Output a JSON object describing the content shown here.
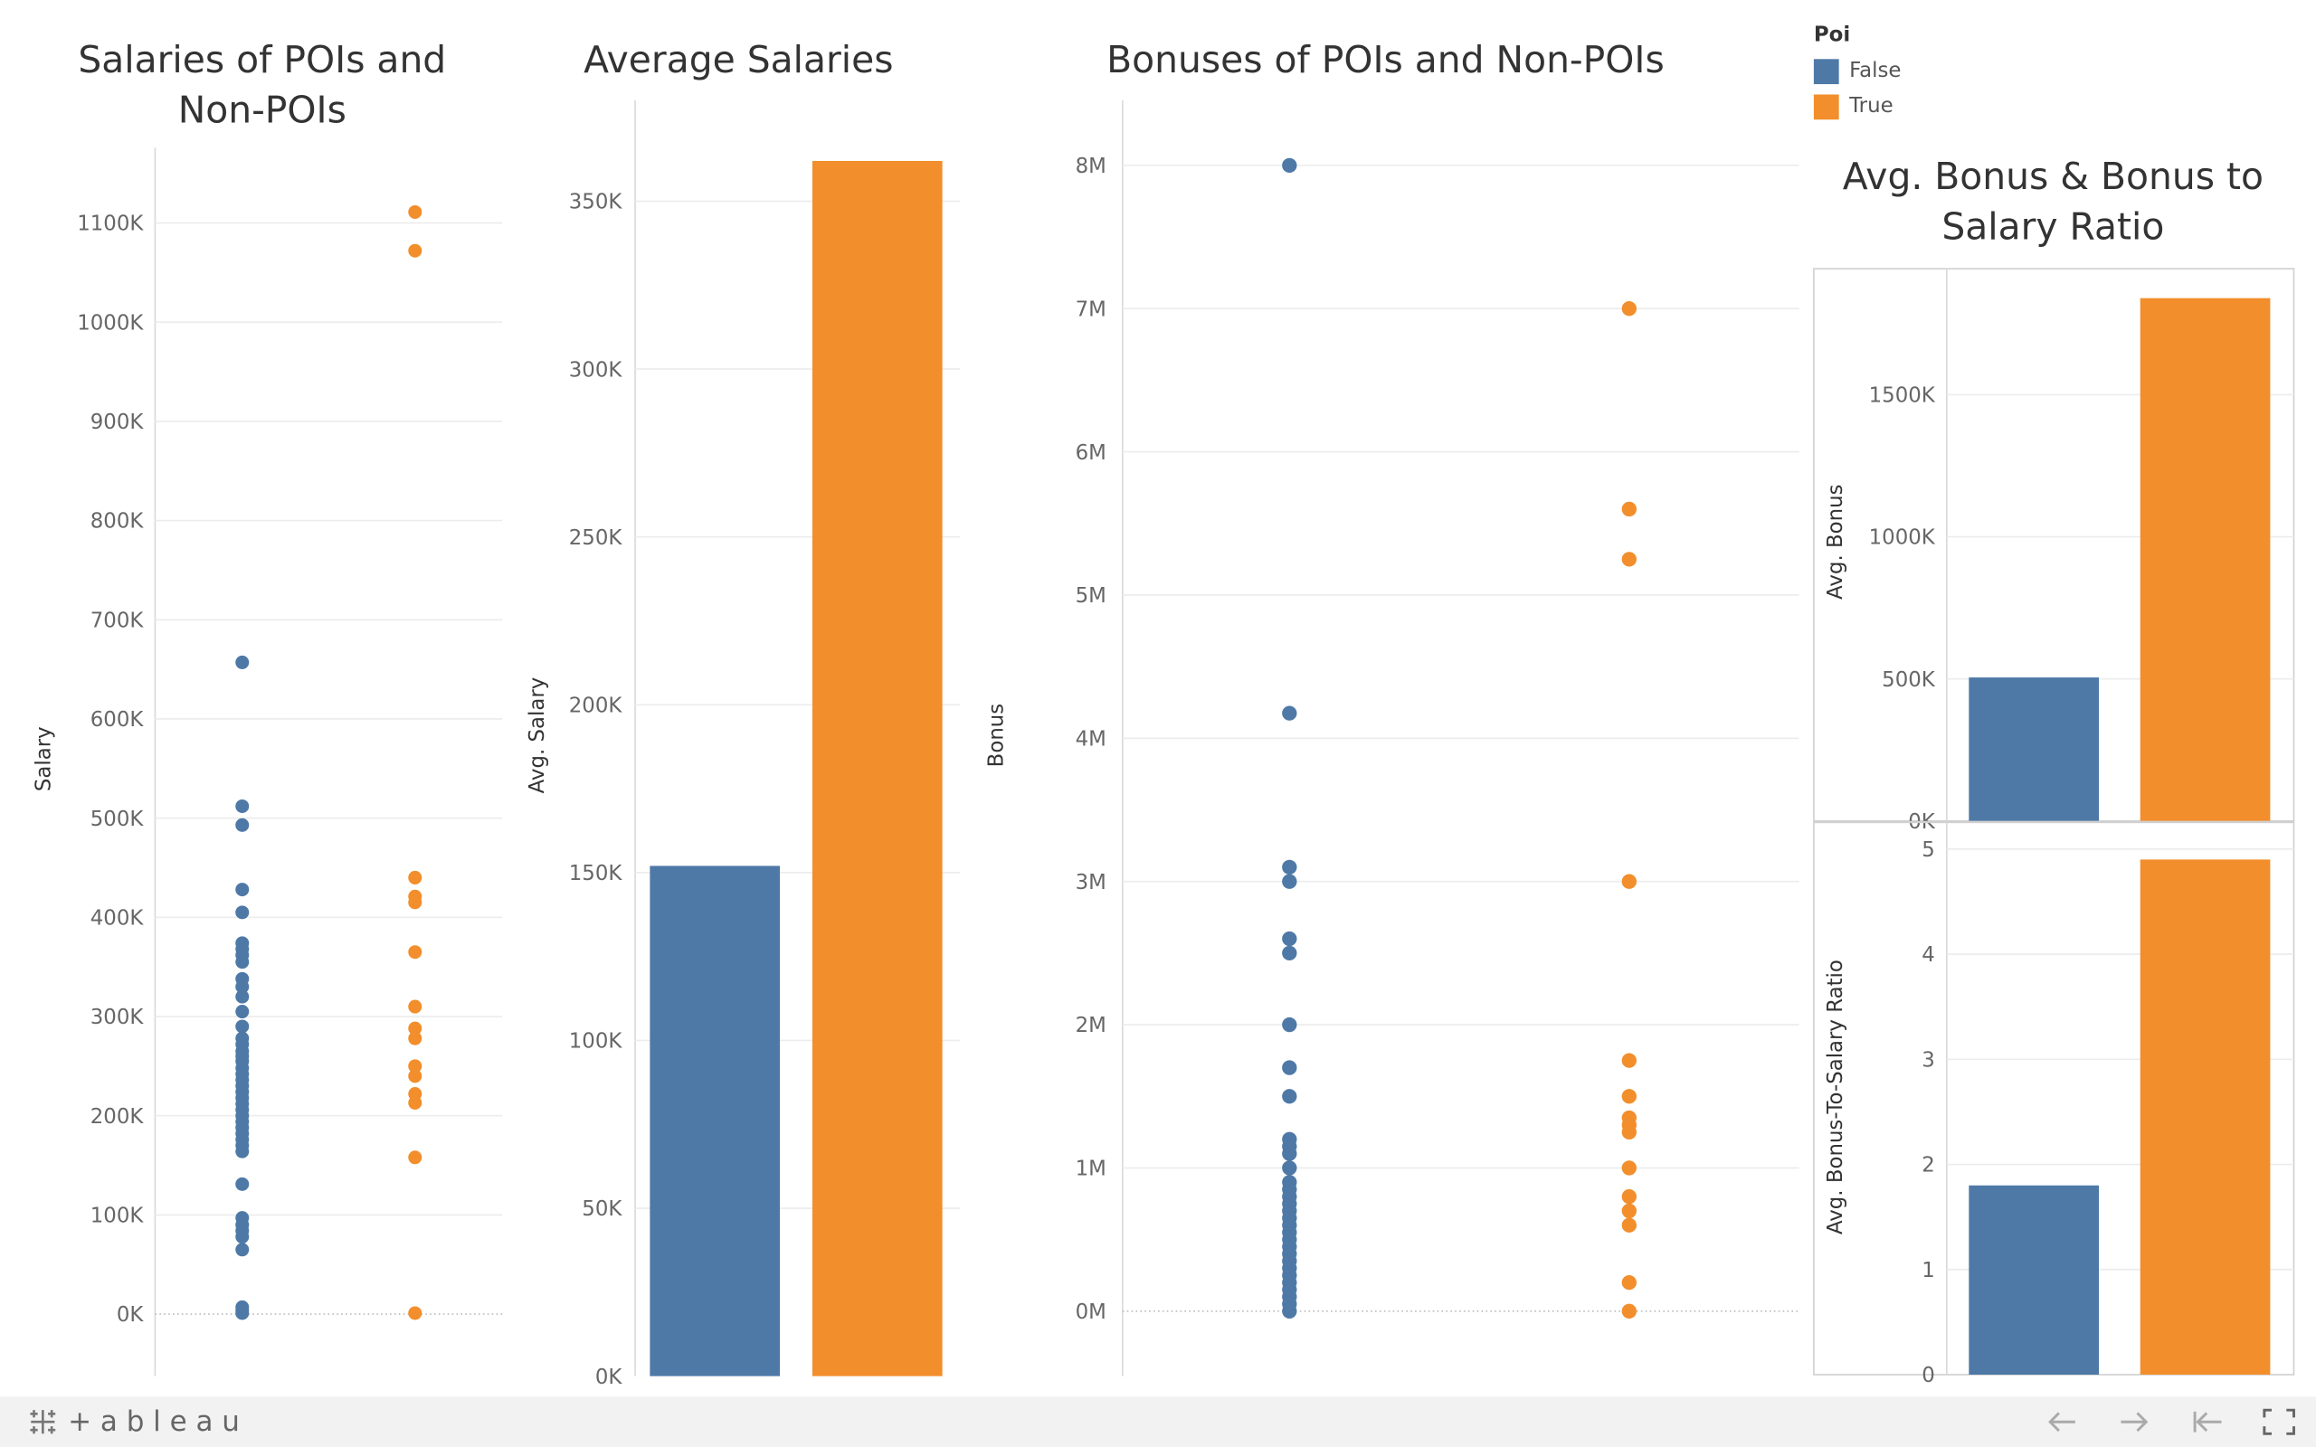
{
  "legend": {
    "title": "Poi",
    "items": [
      {
        "label": "False",
        "color": "#4e79a7"
      },
      {
        "label": "True",
        "color": "#f28e2b"
      }
    ]
  },
  "chart_data": [
    {
      "id": "salaries",
      "type": "scatter",
      "title": "Salaries of POIs and Non-POIs",
      "ylabel": "Salary",
      "ylim": [
        0,
        1100000
      ],
      "ytick_labels": [
        "0K",
        "100K",
        "200K",
        "300K",
        "400K",
        "500K",
        "600K",
        "700K",
        "800K",
        "900K",
        "1000K",
        "1100K"
      ],
      "series": [
        {
          "name": "False",
          "color": "#4e79a7",
          "values": [
            657000,
            512000,
            493000,
            428000,
            405000,
            374000,
            368000,
            362000,
            355000,
            338000,
            330000,
            320000,
            305000,
            290000,
            278000,
            272000,
            265000,
            260000,
            255000,
            248000,
            242000,
            236000,
            230000,
            224000,
            218000,
            212000,
            206000,
            200000,
            194000,
            188000,
            182000,
            176000,
            170000,
            164000,
            131000,
            97000,
            90000,
            84000,
            78000,
            65000,
            7000,
            4000,
            1000
          ]
        },
        {
          "name": "True",
          "color": "#f28e2b",
          "values": [
            1111000,
            1072000,
            440000,
            421000,
            415000,
            365000,
            310000,
            288000,
            278000,
            250000,
            240000,
            222000,
            213000,
            158000,
            1000
          ]
        }
      ]
    },
    {
      "id": "avg_salaries",
      "type": "bar",
      "title": "Average Salaries",
      "ylabel": "Avg. Salary",
      "ylim": [
        0,
        362000
      ],
      "ytick_labels": [
        "0K",
        "50K",
        "100K",
        "150K",
        "200K",
        "250K",
        "300K",
        "350K"
      ],
      "categories": [
        "False",
        "True"
      ],
      "values": [
        152000,
        362000
      ]
    },
    {
      "id": "bonuses",
      "type": "scatter",
      "title": "Bonuses of POIs and Non-POIs",
      "ylabel": "Bonus",
      "ylim": [
        0,
        8000000
      ],
      "ytick_labels": [
        "0M",
        "1M",
        "2M",
        "3M",
        "4M",
        "5M",
        "6M",
        "7M",
        "8M"
      ],
      "series": [
        {
          "name": "False",
          "color": "#4e79a7",
          "values": [
            8000000,
            4175000,
            3100000,
            3000000,
            2600000,
            2500000,
            2000000,
            1700000,
            1500000,
            1200000,
            1150000,
            1100000,
            1000000,
            900000,
            850000,
            800000,
            750000,
            700000,
            650000,
            600000,
            550000,
            500000,
            450000,
            400000,
            350000,
            300000,
            250000,
            200000,
            150000,
            100000,
            50000,
            0
          ]
        },
        {
          "name": "True",
          "color": "#f28e2b",
          "values": [
            7000000,
            5600000,
            5249999,
            3000000,
            1750000,
            1500000,
            1350000,
            1300000,
            1250000,
            1000000,
            800000,
            700000,
            600000,
            200000,
            0
          ]
        }
      ]
    },
    {
      "id": "avg_bonus",
      "type": "bar",
      "title": "Avg. Bonus & Bonus to Salary Ratio",
      "ylabel": "Avg. Bonus",
      "ylim": [
        0,
        1850000
      ],
      "ytick_labels": [
        "0K",
        "500K",
        "1000K",
        "1500K"
      ],
      "categories": [
        "False",
        "True"
      ],
      "values": [
        505000,
        1840000
      ]
    },
    {
      "id": "avg_ratio",
      "type": "bar",
      "title": "",
      "ylabel": "Avg. Bonus-To-Salary Ratio",
      "ylim": [
        0,
        5
      ],
      "ytick_labels": [
        "0",
        "1",
        "2",
        "3",
        "4",
        "5"
      ],
      "categories": [
        "False",
        "True"
      ],
      "values": [
        1.8,
        4.9
      ]
    }
  ],
  "footer": {
    "brand": "+ableau",
    "nav_icons": [
      "undo-icon",
      "redo-icon",
      "revert-icon",
      "fullscreen-icon"
    ]
  }
}
